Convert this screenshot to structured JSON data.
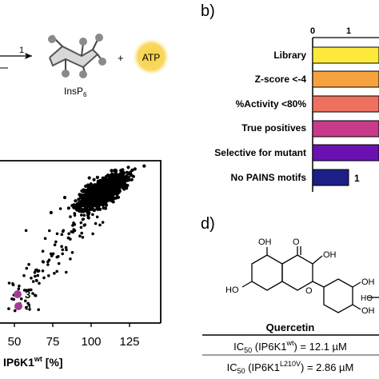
{
  "panels": {
    "b": "b)",
    "d": "d)"
  },
  "scheme": {
    "product_label": "InsP",
    "product_subscript": "6",
    "plus": "+",
    "atp_label": "ATP",
    "arrow_label": "1"
  },
  "colors": {
    "atp_glow": "#f6d04a",
    "marker": "#a23c92",
    "library": "#fde93a",
    "zscore": "#f6a23f",
    "activity": "#ee7160",
    "true_pos": "#c83b8a",
    "selective": "#6a11b0",
    "pains": "#1c1f86"
  },
  "chart_data": [
    {
      "type": "bar",
      "orientation": "horizontal",
      "categories": [
        "Library",
        "Z-score <-4",
        "%Activity <80%",
        "True positives",
        "Selective for mutant",
        "No PAINS motifs"
      ],
      "tick_labels": [
        "0",
        "1"
      ],
      "annotations": [
        "1"
      ]
    },
    {
      "type": "scatter",
      "xlabel_prefix": "IP6K1",
      "xlabel_superscript": "wt",
      "xlabel_suffix": " [%]",
      "xticks": [
        "50",
        "75",
        "100",
        "125"
      ],
      "highlight_labels": [
        "3",
        "4"
      ]
    }
  ],
  "compound": {
    "name": "Quercetin",
    "atoms": [
      "OH",
      "O",
      "HO",
      "O",
      "OH",
      "OH",
      "OH",
      "HO"
    ],
    "ic50_wt_prefix": "IC",
    "ic50_sub": "50",
    "ic50_wt_enzyme": " (IP6K1",
    "ic50_wt_sup": "wt",
    "ic50_wt_value": ") = 12.1 µM",
    "ic50_mut_sup": "L210V",
    "ic50_mut_value": ") = 2.86 µM"
  }
}
